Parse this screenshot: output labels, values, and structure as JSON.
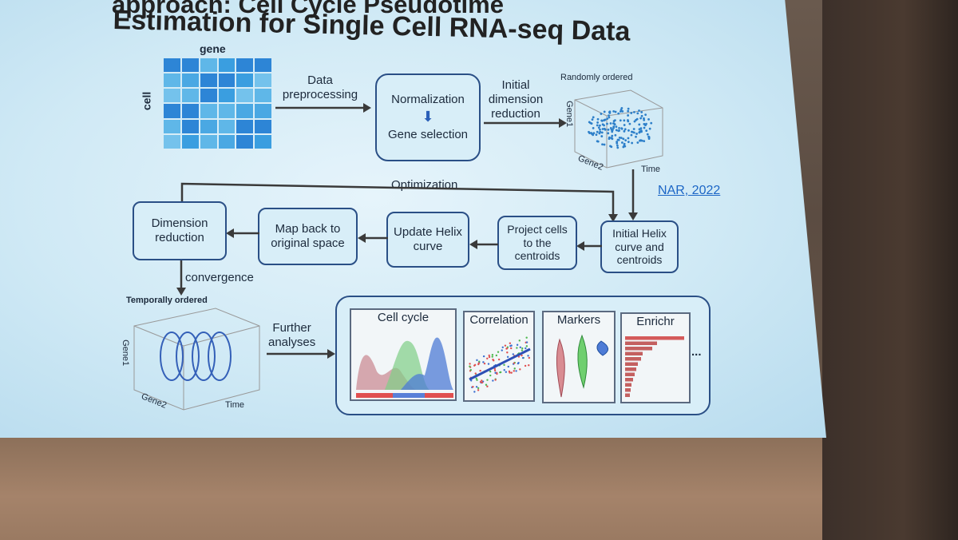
{
  "slide": {
    "title_line1": "approach: Cell Cycle Pseudotime",
    "title_line2": "Estimation for Single Cell RNA-seq Data"
  },
  "matrix": {
    "gene_label": "gene",
    "cell_label": "cell"
  },
  "flow": {
    "data_preprocessing": "Data\npreprocessing",
    "normalization": "Normalization",
    "gene_selection": "Gene selection",
    "initial_dim_reduction": "Initial\ndimension\nreduction",
    "optimization": "Optimization",
    "initial_helix": "Initial Helix\ncurve and\ncentroids",
    "project_cells": "Project cells\nto the\ncentroids",
    "update_helix": "Update Helix\ncurve",
    "map_back": "Map back to\noriginal space",
    "dimension_reduction": "Dimension\nreduction",
    "convergence": "convergence",
    "further_analyses": "Further\nanalyses"
  },
  "plot_random": {
    "title": "Randomly ordered",
    "axis_gene1": "Gene1",
    "axis_gene2": "Gene2",
    "axis_time": "Time"
  },
  "plot_temporal": {
    "title": "Temporally ordered",
    "axis_gene1": "Gene1",
    "axis_gene2": "Gene2",
    "axis_time": "Time"
  },
  "reference": "NAR, 2022",
  "analyses": {
    "panels": [
      "Cell cycle",
      "Correlation",
      "Markers",
      "Enrichr"
    ],
    "ellipsis": "..."
  },
  "colors": {
    "box_border": "#2a4f86",
    "matrix_blue": "#58b2e6",
    "arrow": "#3a3a3a",
    "link": "#1c66c6"
  }
}
